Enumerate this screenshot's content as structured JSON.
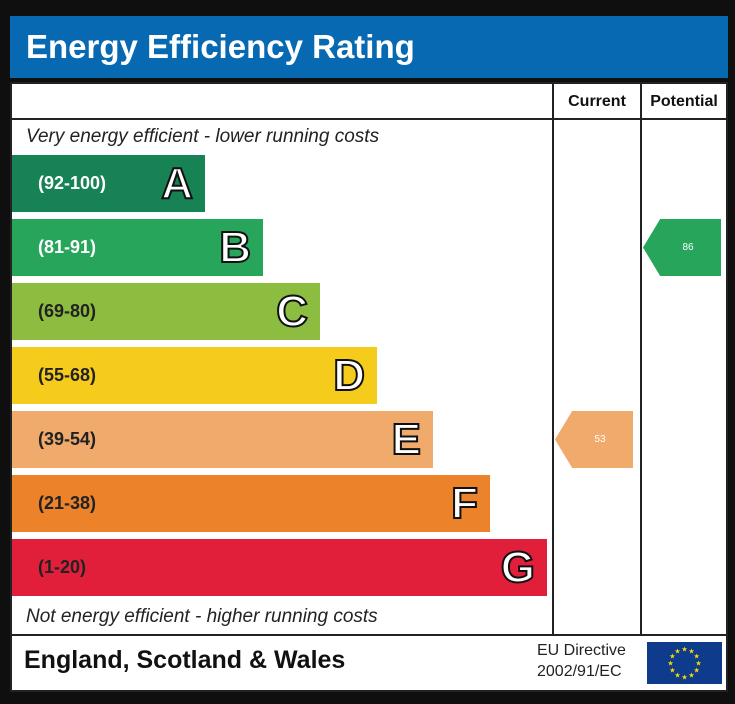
{
  "title": "Energy Efficiency Rating",
  "chart_data": {
    "type": "bar",
    "title": "Energy Efficiency Rating",
    "columns": [
      "Current",
      "Potential"
    ],
    "top_note": "Very energy efficient - lower running costs",
    "bottom_note": "Not energy efficient - higher running costs",
    "bands": [
      {
        "letter": "A",
        "range": "(92-100)",
        "color": "#178253",
        "text_color": "#ffffff"
      },
      {
        "letter": "B",
        "range": "(81-91)",
        "color": "#27a55b",
        "text_color": "#ffffff"
      },
      {
        "letter": "C",
        "range": "(69-80)",
        "color": "#8dbd40",
        "text_color": "#222222"
      },
      {
        "letter": "D",
        "range": "(55-68)",
        "color": "#f5cc1c",
        "text_color": "#222222"
      },
      {
        "letter": "E",
        "range": "(39-54)",
        "color": "#f0aa6c",
        "text_color": "#222222"
      },
      {
        "letter": "F",
        "range": "(21-38)",
        "color": "#ec832b",
        "text_color": "#222222"
      },
      {
        "letter": "G",
        "range": "(1-20)",
        "color": "#e11f3b",
        "text_color": "#222222"
      }
    ],
    "current": {
      "value": "53",
      "band": "E",
      "color": "#f0aa6c"
    },
    "potential": {
      "value": "86",
      "band": "B",
      "color": "#27a55b"
    }
  },
  "footer": {
    "region": "England, Scotland & Wales",
    "directive_line1": "EU Directive",
    "directive_line2": "2002/91/EC"
  }
}
